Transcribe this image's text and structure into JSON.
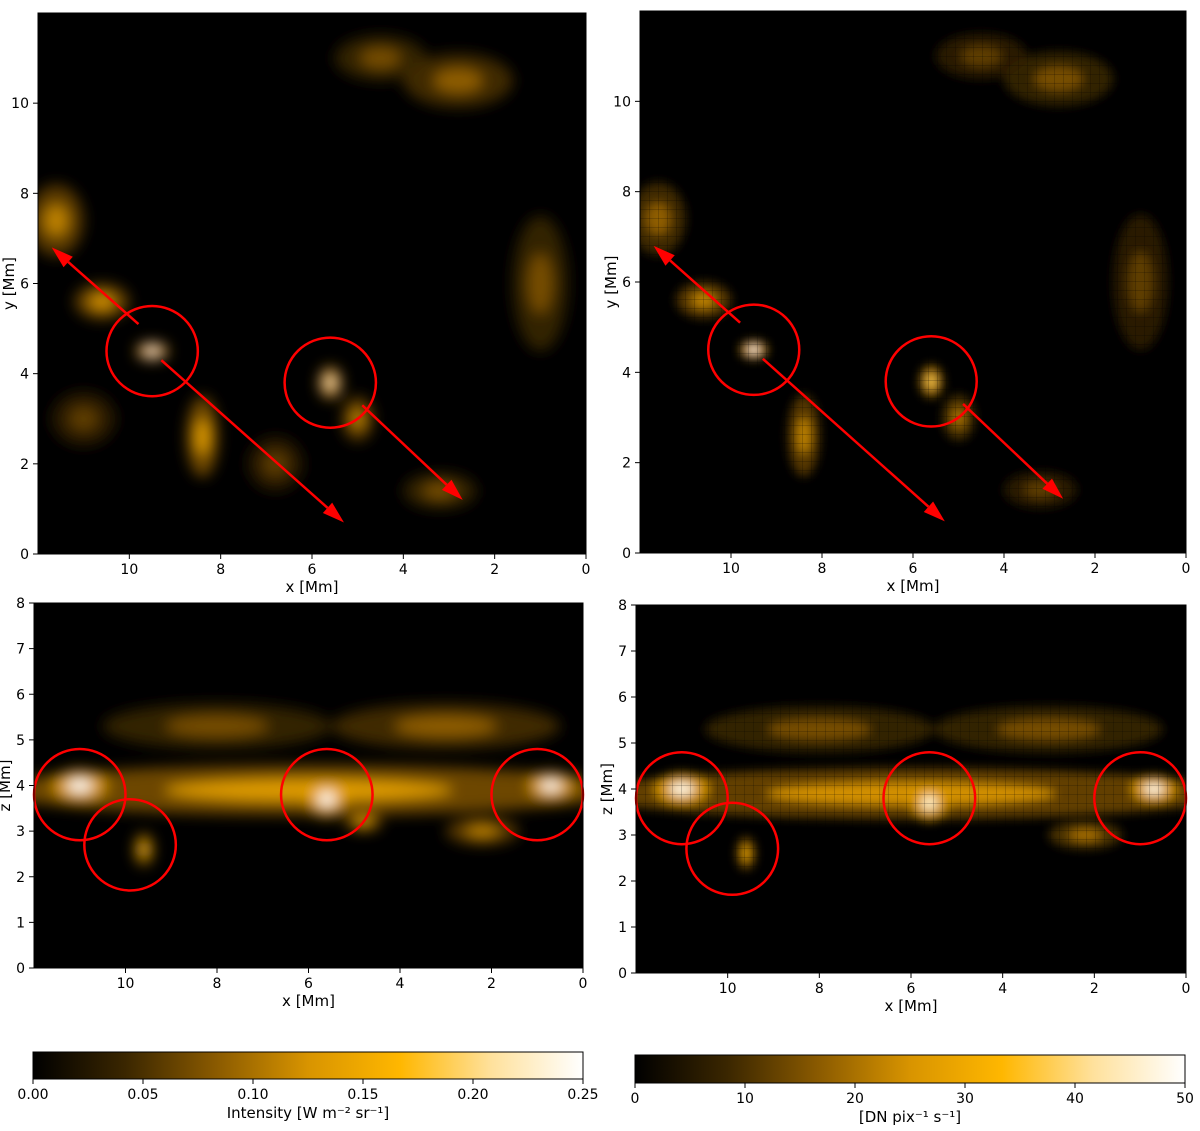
{
  "chart_data": [
    {
      "id": "top-left",
      "type": "heatmap",
      "title": "",
      "xlabel": "x [Mm]",
      "ylabel": "y [Mm]",
      "xlim": [
        12,
        0
      ],
      "ylim": [
        0,
        12
      ],
      "xticks": [
        10,
        8,
        6,
        4,
        2,
        0
      ],
      "yticks": [
        0,
        2,
        4,
        6,
        8,
        10
      ],
      "colorscale": "intensity",
      "circles": [
        {
          "x": 9.5,
          "y": 4.5,
          "r": 1.0
        },
        {
          "x": 5.6,
          "y": 3.8,
          "r": 1.0
        }
      ],
      "arrows": [
        {
          "from": [
            9.3,
            4.3
          ],
          "to": [
            5.3,
            0.7
          ]
        },
        {
          "from": [
            9.8,
            5.1
          ],
          "to": [
            11.7,
            6.8
          ]
        },
        {
          "from": [
            4.9,
            3.3
          ],
          "to": [
            2.7,
            1.2
          ]
        }
      ],
      "blobs": [
        {
          "x": 9.5,
          "y": 4.5,
          "sx": 0.35,
          "sy": 0.2,
          "v": 1.0
        },
        {
          "x": 5.6,
          "y": 3.8,
          "sx": 0.25,
          "sy": 0.35,
          "v": 0.9
        },
        {
          "x": 10.6,
          "y": 5.6,
          "sx": 0.6,
          "sy": 0.4,
          "v": 0.5
        },
        {
          "x": 11.6,
          "y": 7.4,
          "sx": 0.6,
          "sy": 0.8,
          "v": 0.45
        },
        {
          "x": 8.4,
          "y": 2.6,
          "sx": 0.35,
          "sy": 0.9,
          "v": 0.55
        },
        {
          "x": 5.0,
          "y": 3.0,
          "sx": 0.35,
          "sy": 0.5,
          "v": 0.45
        },
        {
          "x": 3.2,
          "y": 1.4,
          "sx": 0.8,
          "sy": 0.4,
          "v": 0.3
        },
        {
          "x": 6.8,
          "y": 2.0,
          "sx": 0.6,
          "sy": 0.6,
          "v": 0.25
        },
        {
          "x": 2.8,
          "y": 10.5,
          "sx": 1.2,
          "sy": 0.6,
          "v": 0.35
        },
        {
          "x": 1.0,
          "y": 6.0,
          "sx": 0.6,
          "sy": 1.5,
          "v": 0.3
        },
        {
          "x": 4.5,
          "y": 11.0,
          "sx": 1.0,
          "sy": 0.5,
          "v": 0.3
        },
        {
          "x": 11.0,
          "y": 3.0,
          "sx": 0.7,
          "sy": 0.6,
          "v": 0.25
        }
      ]
    },
    {
      "id": "top-right",
      "type": "heatmap",
      "title": "",
      "xlabel": "x [Mm]",
      "ylabel": "y [Mm]",
      "xlim": [
        12,
        0
      ],
      "ylim": [
        0,
        12
      ],
      "xticks": [
        10,
        8,
        6,
        4,
        2,
        0
      ],
      "yticks": [
        0,
        2,
        4,
        6,
        8,
        10
      ],
      "colorscale": "dn",
      "pixelated": true,
      "circles": [
        {
          "x": 9.5,
          "y": 4.5,
          "r": 1.0
        },
        {
          "x": 5.6,
          "y": 3.8,
          "r": 1.0
        }
      ],
      "arrows": [
        {
          "from": [
            9.3,
            4.3
          ],
          "to": [
            5.3,
            0.7
          ]
        },
        {
          "from": [
            9.8,
            5.1
          ],
          "to": [
            11.7,
            6.8
          ]
        },
        {
          "from": [
            4.9,
            3.3
          ],
          "to": [
            2.7,
            1.2
          ]
        }
      ],
      "blobs": [
        {
          "x": 9.5,
          "y": 4.5,
          "sx": 0.3,
          "sy": 0.2,
          "v": 1.0
        },
        {
          "x": 5.6,
          "y": 3.8,
          "sx": 0.25,
          "sy": 0.35,
          "v": 0.75
        },
        {
          "x": 10.6,
          "y": 5.6,
          "sx": 0.6,
          "sy": 0.4,
          "v": 0.45
        },
        {
          "x": 11.6,
          "y": 7.4,
          "sx": 0.6,
          "sy": 0.8,
          "v": 0.35
        },
        {
          "x": 8.4,
          "y": 2.6,
          "sx": 0.35,
          "sy": 0.9,
          "v": 0.45
        },
        {
          "x": 5.0,
          "y": 3.0,
          "sx": 0.35,
          "sy": 0.5,
          "v": 0.4
        },
        {
          "x": 3.2,
          "y": 1.4,
          "sx": 0.8,
          "sy": 0.4,
          "v": 0.25
        },
        {
          "x": 2.8,
          "y": 10.5,
          "sx": 1.2,
          "sy": 0.6,
          "v": 0.3
        },
        {
          "x": 1.0,
          "y": 6.0,
          "sx": 0.6,
          "sy": 1.5,
          "v": 0.25
        },
        {
          "x": 4.5,
          "y": 11.0,
          "sx": 1.0,
          "sy": 0.5,
          "v": 0.25
        }
      ]
    },
    {
      "id": "bottom-left",
      "type": "heatmap",
      "title": "",
      "xlabel": "x [Mm]",
      "ylabel": "z [Mm]",
      "xlim": [
        12,
        0
      ],
      "ylim": [
        0,
        8
      ],
      "xticks": [
        10,
        8,
        6,
        4,
        2,
        0
      ],
      "yticks": [
        0,
        1,
        2,
        3,
        4,
        5,
        6,
        7,
        8
      ],
      "colorscale": "intensity",
      "circles": [
        {
          "x": 11.0,
          "y": 3.8,
          "r": 1.0
        },
        {
          "x": 9.9,
          "y": 2.7,
          "r": 1.0
        },
        {
          "x": 5.6,
          "y": 3.8,
          "r": 1.0
        },
        {
          "x": 1.0,
          "y": 3.8,
          "r": 1.0
        }
      ],
      "arrows": [],
      "blobs": [
        {
          "x": 6.0,
          "y": 3.9,
          "sx": 7.0,
          "sy": 0.55,
          "v": 0.55
        },
        {
          "x": 11.0,
          "y": 4.0,
          "sx": 0.6,
          "sy": 0.35,
          "v": 1.0
        },
        {
          "x": 5.6,
          "y": 3.7,
          "sx": 0.4,
          "sy": 0.4,
          "v": 1.0
        },
        {
          "x": 0.7,
          "y": 4.0,
          "sx": 0.5,
          "sy": 0.3,
          "v": 1.0
        },
        {
          "x": 9.6,
          "y": 2.6,
          "sx": 0.2,
          "sy": 0.35,
          "v": 0.7
        },
        {
          "x": 8.0,
          "y": 5.3,
          "sx": 2.5,
          "sy": 0.5,
          "v": 0.3
        },
        {
          "x": 3.0,
          "y": 5.3,
          "sx": 2.5,
          "sy": 0.5,
          "v": 0.35
        },
        {
          "x": 2.2,
          "y": 3.0,
          "sx": 0.8,
          "sy": 0.3,
          "v": 0.45
        },
        {
          "x": 4.8,
          "y": 3.2,
          "sx": 0.4,
          "sy": 0.2,
          "v": 0.6
        }
      ]
    },
    {
      "id": "bottom-right",
      "type": "heatmap",
      "title": "",
      "xlabel": "x [Mm]",
      "ylabel": "z [Mm]",
      "xlim": [
        12,
        0
      ],
      "ylim": [
        0,
        8
      ],
      "xticks": [
        10,
        8,
        6,
        4,
        2,
        0
      ],
      "yticks": [
        0,
        1,
        2,
        3,
        4,
        5,
        6,
        7,
        8
      ],
      "colorscale": "dn",
      "pixelated": true,
      "circles": [
        {
          "x": 11.0,
          "y": 3.8,
          "r": 1.0
        },
        {
          "x": 9.9,
          "y": 2.7,
          "r": 1.0
        },
        {
          "x": 5.6,
          "y": 3.8,
          "r": 1.0
        },
        {
          "x": 1.0,
          "y": 3.8,
          "r": 1.0
        }
      ],
      "arrows": [],
      "blobs": [
        {
          "x": 6.0,
          "y": 3.9,
          "sx": 7.0,
          "sy": 0.55,
          "v": 0.5
        },
        {
          "x": 11.0,
          "y": 4.0,
          "sx": 0.6,
          "sy": 0.35,
          "v": 0.95
        },
        {
          "x": 5.6,
          "y": 3.7,
          "sx": 0.4,
          "sy": 0.4,
          "v": 0.9
        },
        {
          "x": 0.7,
          "y": 4.0,
          "sx": 0.5,
          "sy": 0.3,
          "v": 0.95
        },
        {
          "x": 9.6,
          "y": 2.6,
          "sx": 0.2,
          "sy": 0.35,
          "v": 0.6
        },
        {
          "x": 8.0,
          "y": 5.3,
          "sx": 2.5,
          "sy": 0.5,
          "v": 0.3
        },
        {
          "x": 3.0,
          "y": 5.3,
          "sx": 2.5,
          "sy": 0.5,
          "v": 0.3
        },
        {
          "x": 2.2,
          "y": 3.0,
          "sx": 0.8,
          "sy": 0.3,
          "v": 0.4
        }
      ]
    }
  ],
  "colorbars": [
    {
      "id": "intensity",
      "label": "Intensity [W m⁻² sr⁻¹]",
      "min": 0.0,
      "max": 0.25,
      "ticks": [
        "0.00",
        "0.05",
        "0.10",
        "0.15",
        "0.20",
        "0.25"
      ],
      "colors": [
        "#000000",
        "#3a2600",
        "#8a5a00",
        "#d89400",
        "#ffb700",
        "#ffe19c",
        "#ffffff"
      ]
    },
    {
      "id": "dn",
      "label": "[DN pix⁻¹ s⁻¹]",
      "min": 0,
      "max": 50,
      "ticks": [
        "0",
        "10",
        "20",
        "30",
        "40",
        "50"
      ],
      "colors": [
        "#000000",
        "#3a2600",
        "#8a5a00",
        "#d89400",
        "#ffb700",
        "#ffe19c",
        "#ffffff"
      ]
    }
  ],
  "colors": {
    "annotation": "#ff0000"
  }
}
